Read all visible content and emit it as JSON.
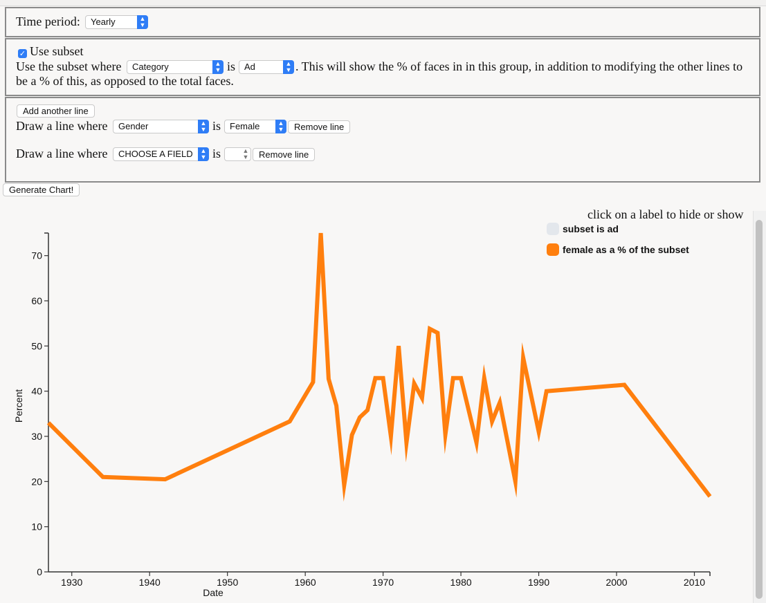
{
  "controls": {
    "time_period_label": "Time period:",
    "time_period_value": "Yearly",
    "use_subset_label": "Use subset",
    "subset_prefix": "Use the subset where",
    "subset_field": "Category",
    "is_word": "is",
    "subset_value": "Ad",
    "subset_desc_line1": ". This will show the % of faces in in this group, in addition to modifying the other lines to",
    "subset_desc_line2": "be a % of this, as opposed to the total faces.",
    "add_line_label": "Add another line",
    "lines": [
      {
        "prefix": "Draw a line where",
        "field": "Gender",
        "is_word": "is",
        "value": "Female",
        "remove_label": "Remove line"
      },
      {
        "prefix": "Draw a line where",
        "field": "CHOOSE A FIELD",
        "is_word": "is",
        "value": "",
        "remove_label": "Remove line"
      }
    ],
    "generate_label": "Generate Chart!"
  },
  "legend": {
    "hint": "click on a label to hide or show",
    "items": [
      {
        "label": "subset is ad",
        "color": "#e3e7ec"
      },
      {
        "label": "female as a % of the subset",
        "color": "#ff7f0e"
      }
    ]
  },
  "chart_data": {
    "type": "line",
    "xlabel": "Date",
    "ylabel": "Percent",
    "xlim": [
      1927,
      2012
    ],
    "ylim": [
      0,
      75
    ],
    "x_ticks": [
      "1930",
      "1940",
      "1950",
      "1960",
      "1970",
      "1980",
      "1990",
      "2000",
      "2010"
    ],
    "y_ticks": [
      "0",
      "10",
      "20",
      "30",
      "40",
      "50",
      "60",
      "70"
    ],
    "series": [
      {
        "name": "female as a % of the subset",
        "color": "#ff7f0e",
        "points": [
          [
            1927,
            33
          ],
          [
            1934,
            21
          ],
          [
            1942,
            20.5
          ],
          [
            1958,
            33.3
          ],
          [
            1961,
            42
          ],
          [
            1962,
            75
          ],
          [
            1963,
            42.7
          ],
          [
            1964,
            36.8
          ],
          [
            1965,
            19.2
          ],
          [
            1966,
            30.3
          ],
          [
            1967,
            34.2
          ],
          [
            1968,
            35.8
          ],
          [
            1969,
            42.9
          ],
          [
            1970,
            42.9
          ],
          [
            1971,
            30
          ],
          [
            1972,
            50
          ],
          [
            1973,
            28.6
          ],
          [
            1974,
            41.7
          ],
          [
            1975,
            38.5
          ],
          [
            1976,
            53.8
          ],
          [
            1977,
            52.9
          ],
          [
            1978,
            30.4
          ],
          [
            1979,
            42.9
          ],
          [
            1980,
            42.9
          ],
          [
            1982,
            28.6
          ],
          [
            1983,
            42.9
          ],
          [
            1984,
            33.3
          ],
          [
            1985,
            37.5
          ],
          [
            1987,
            20
          ],
          [
            1988,
            47.4
          ],
          [
            1990,
            31
          ],
          [
            1991,
            40
          ],
          [
            2001,
            41.4
          ],
          [
            2012,
            16.7
          ]
        ]
      }
    ]
  }
}
